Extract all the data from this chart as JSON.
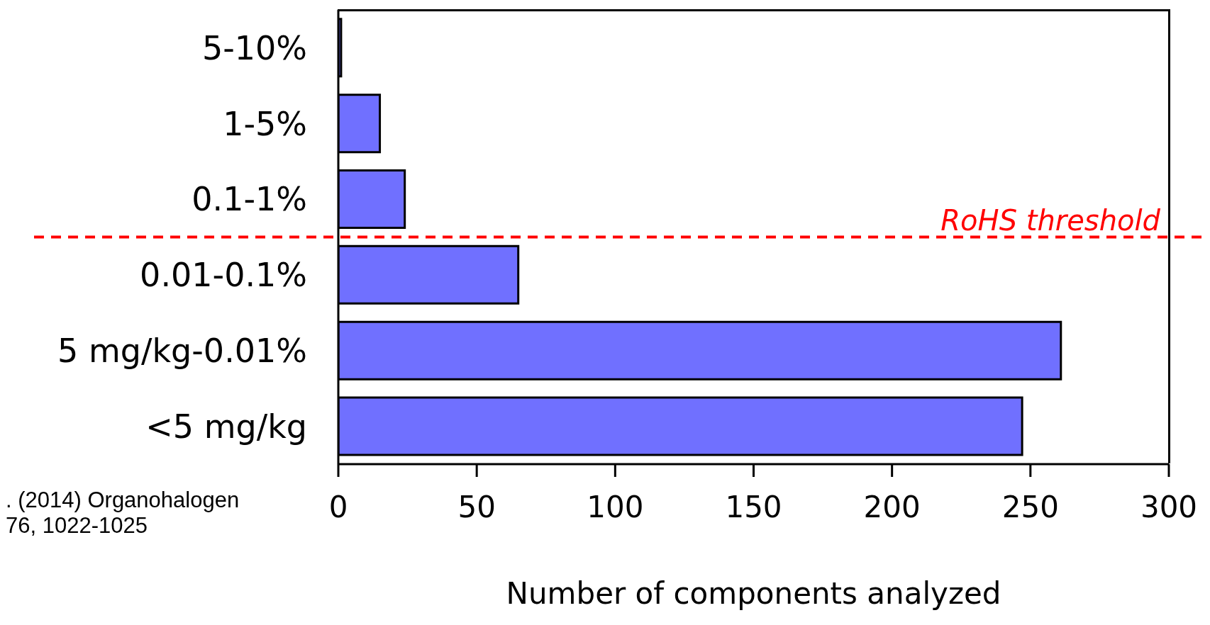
{
  "chart_data": {
    "type": "bar",
    "orientation": "horizontal",
    "xlabel": "Number of components analyzed",
    "categories": [
      "5-10%",
      "1-5%",
      "0.1-1%",
      "0.01-0.1%",
      "5 mg/kg-0.01%",
      "<5 mg/kg"
    ],
    "values": [
      1,
      15,
      24,
      65,
      261,
      247
    ],
    "color": "#7070ff",
    "xlim": [
      0,
      300
    ],
    "xticks": [
      0,
      50,
      100,
      150,
      200,
      250,
      300
    ],
    "ref_lines": [
      {
        "axis": "y",
        "value": "0.1-1%",
        "label": "RoHS threshold",
        "color": "#ff0000",
        "line_style": "dashed"
      }
    ],
    "annotations": [
      ". (2014) Organohalogen\n76, 1022-1025"
    ]
  }
}
